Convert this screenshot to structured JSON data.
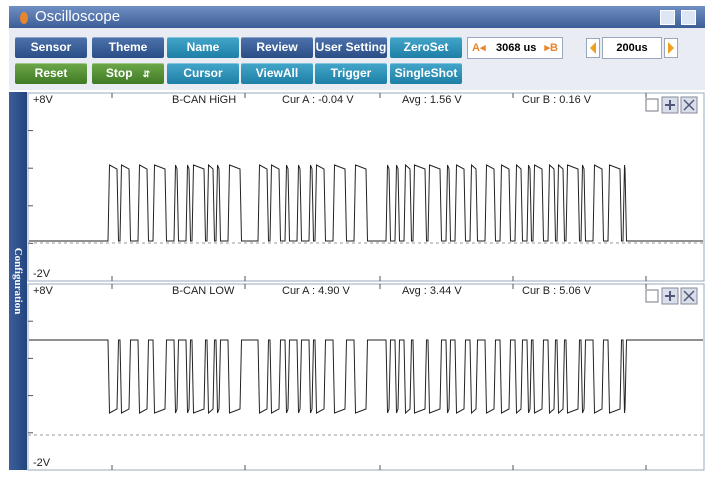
{
  "window": {
    "title": "Oscilloscope"
  },
  "toolbar": {
    "row1": [
      "Sensor",
      "Theme",
      "Name",
      "Review",
      "User Setting",
      "ZeroSet"
    ],
    "row2": [
      "Reset",
      "Stop",
      "Cursor",
      "ViewAll",
      "Trigger",
      "SingleShot"
    ]
  },
  "cursor_control": {
    "a": "A",
    "value": "3068 us",
    "b": "B"
  },
  "timebase": {
    "value": "200us"
  },
  "sidebar": {
    "label": "Configuration"
  },
  "channels": [
    {
      "top": "+8V",
      "bottom": "-2V",
      "name": "B-CAN HiGH",
      "cur_a": "Cur A : -0.04 V",
      "avg": "Avg : 1.56 V",
      "cur_b": "Cur B : 0.16 V"
    },
    {
      "top": "+8V",
      "bottom": "-2V",
      "name": "B-CAN LOW",
      "cur_a": "Cur A : 4.90 V",
      "avg": "Avg : 3.44 V",
      "cur_b": "Cur B : 5.06 V"
    }
  ]
}
